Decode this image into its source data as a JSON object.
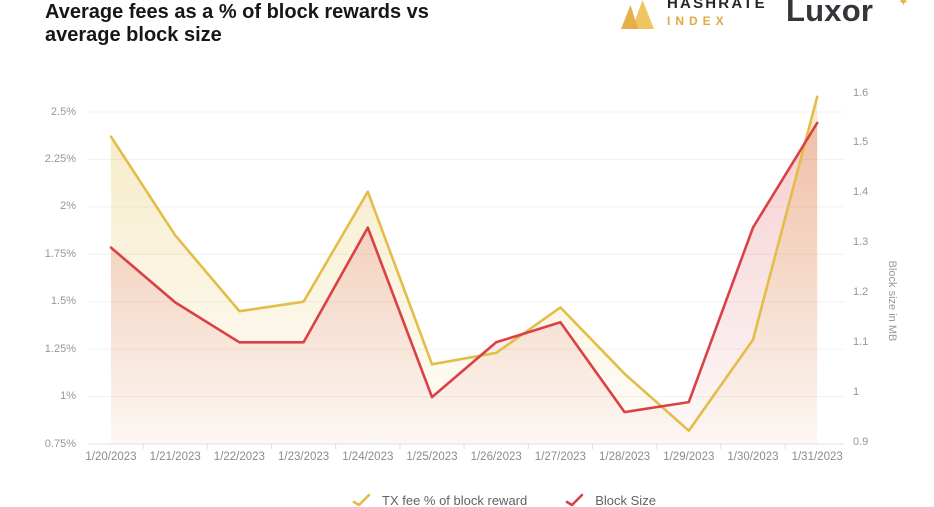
{
  "header": {
    "title_line1": "Average fees as a % of block rewards vs",
    "title_line2": "average block size",
    "brand_hashrate": {
      "name": "HASHRATE",
      "sub": "INDEX"
    },
    "brand_luxor": {
      "name": "Luxor",
      "mark": "✦"
    },
    "accent_gold": "#e8b44c"
  },
  "chart_data": {
    "type": "line",
    "title": "Average fees as a % of block rewards vs average block size",
    "x": [
      "1/20/2023",
      "1/21/2023",
      "1/22/2023",
      "1/23/2023",
      "1/24/2023",
      "1/25/2023",
      "1/26/2023",
      "1/27/2023",
      "1/28/2023",
      "1/29/2023",
      "1/30/2023",
      "1/31/2023"
    ],
    "series": [
      {
        "name": "TX fee % of block reward",
        "axis": "left",
        "color": "#e3bd47",
        "values": [
          2.37,
          1.85,
          1.45,
          1.5,
          2.08,
          1.17,
          1.23,
          1.47,
          1.12,
          0.82,
          1.3,
          2.58
        ]
      },
      {
        "name": "Block Size",
        "axis": "right",
        "color": "#d94146",
        "values": [
          1.29,
          1.18,
          1.1,
          1.1,
          1.33,
          0.99,
          1.1,
          1.14,
          0.96,
          0.98,
          1.33,
          1.54
        ]
      }
    ],
    "left_axis": {
      "unit": "%",
      "min": 0.75,
      "max": 2.5,
      "ticks": [
        "2.5%",
        "2.25%",
        "2%",
        "1.75%",
        "1.5%",
        "1.25%",
        "1%",
        "0.75%"
      ],
      "tick_values": [
        2.5,
        2.25,
        2.0,
        1.75,
        1.5,
        1.25,
        1.0,
        0.75
      ]
    },
    "right_axis": {
      "label": "Block size in MB",
      "min": 0.9,
      "max": 1.6,
      "ticks": [
        "1.6",
        "1.5",
        "1.4",
        "1.3",
        "1.2",
        "1.1",
        "1",
        "0.9"
      ],
      "tick_values": [
        1.6,
        1.5,
        1.4,
        1.3,
        1.2,
        1.1,
        1.0,
        0.9
      ]
    },
    "legend": [
      "TX fee % of block reward",
      "Block Size"
    ],
    "legend_position": "bottom",
    "grid": true
  }
}
